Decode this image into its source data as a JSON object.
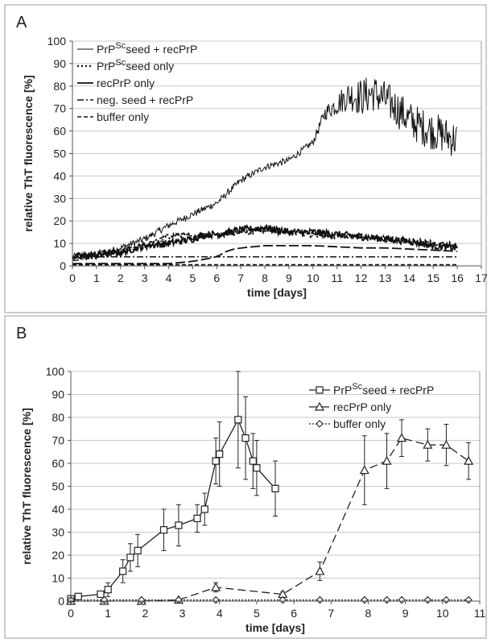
{
  "chart_data": [
    {
      "panel": "A",
      "type": "line",
      "xlabel": "time [days]",
      "ylabel": "relative ThT fluorescence [%]",
      "xlim": [
        0,
        17
      ],
      "ylim": [
        0,
        100
      ],
      "xticks": [
        0,
        1,
        2,
        3,
        4,
        5,
        6,
        7,
        8,
        9,
        10,
        11,
        12,
        13,
        14,
        15,
        16,
        17
      ],
      "yticks": [
        0,
        10,
        20,
        30,
        40,
        50,
        60,
        70,
        80,
        90,
        100
      ],
      "legend_position": "top-left",
      "legend": [
        {
          "sup_prefix": "PrP",
          "sup": "Sc",
          "text": "seed + recPrP",
          "style": "solid-thin"
        },
        {
          "sup_prefix": "PrP",
          "sup": "Sc",
          "text": "seed only",
          "style": "dotted"
        },
        {
          "sup_prefix": "",
          "sup": "",
          "text": "recPrP only",
          "style": "solid-thick"
        },
        {
          "sup_prefix": "",
          "sup": "",
          "text": "neg. seed + recPrP",
          "style": "dash-dot"
        },
        {
          "sup_prefix": "",
          "sup": "",
          "text": "buffer only",
          "style": "dashed"
        }
      ],
      "series": [
        {
          "key": "s1",
          "style": "solid-thin",
          "noise": 1.5,
          "noise_growth": 7,
          "x": [
            0,
            1,
            2,
            3,
            4,
            5,
            6,
            7,
            8,
            9,
            10,
            10.5,
            11,
            11.5,
            12,
            12.5,
            13,
            13.5,
            14,
            14.5,
            15,
            15.5,
            16
          ],
          "y": [
            4,
            5,
            8,
            12,
            18,
            23,
            28,
            38,
            44,
            47,
            55,
            68,
            72,
            76,
            75,
            77,
            74,
            70,
            65,
            62,
            60,
            58,
            56
          ]
        },
        {
          "key": "s2",
          "style": "dotted",
          "noise": 1.2,
          "noise_growth": 0,
          "x": [
            0,
            1,
            2,
            3,
            3.5,
            4,
            4.5,
            5,
            5.5,
            6,
            7,
            8,
            9,
            10,
            11,
            12,
            13,
            14,
            15,
            16
          ],
          "y": [
            3,
            4,
            6,
            9,
            11,
            13,
            14,
            13,
            13,
            14,
            15,
            16,
            15,
            14,
            13,
            13,
            12,
            11,
            10,
            9
          ]
        },
        {
          "key": "s3",
          "style": "solid-thick",
          "noise": 1.6,
          "noise_growth": 0,
          "x": [
            0,
            1,
            2,
            3,
            4,
            5,
            5.5,
            6,
            7,
            8,
            9,
            10,
            11,
            12,
            13,
            14,
            15,
            16
          ],
          "y": [
            4,
            5,
            6,
            9,
            10,
            12,
            14,
            14,
            16,
            17,
            15,
            15,
            14,
            13,
            12,
            11,
            9,
            8
          ]
        },
        {
          "key": "s4",
          "style": "dash-dot",
          "noise": 0,
          "noise_growth": 0,
          "x": [
            0,
            16
          ],
          "y": [
            4,
            4
          ]
        },
        {
          "key": "s5",
          "style": "long-dash",
          "noise": 0,
          "noise_growth": 0,
          "x": [
            0,
            4,
            5,
            5.5,
            6,
            6.5,
            7,
            8,
            9,
            10,
            11,
            12,
            13,
            14,
            15,
            16
          ],
          "y": [
            1,
            1,
            2,
            3,
            4,
            7,
            8,
            9,
            9,
            9,
            8.5,
            8,
            8,
            7.5,
            7,
            6.5
          ]
        },
        {
          "key": "s6",
          "style": "dashed",
          "noise": 0,
          "noise_growth": 0,
          "x": [
            0,
            16
          ],
          "y": [
            0.5,
            0.5
          ]
        }
      ]
    },
    {
      "panel": "B",
      "type": "line",
      "xlabel": "time [days]",
      "ylabel": "relative ThT fluorescence [%]",
      "xlim": [
        0,
        11
      ],
      "ylim": [
        0,
        100
      ],
      "xticks": [
        0,
        1,
        2,
        3,
        4,
        5,
        6,
        7,
        8,
        9,
        10,
        11
      ],
      "yticks": [
        0,
        10,
        20,
        30,
        40,
        50,
        60,
        70,
        80,
        90,
        100
      ],
      "legend_position": "top-right",
      "legend": [
        {
          "sup_prefix": "PrP",
          "sup": "Sc",
          "text": "seed + recPrP",
          "marker": "square",
          "style": "solid"
        },
        {
          "sup_prefix": "",
          "sup": "",
          "text": "recPrP only",
          "marker": "triangle",
          "style": "dashed"
        },
        {
          "sup_prefix": "",
          "sup": "",
          "text": "buffer only",
          "marker": "diamond",
          "style": "dotted"
        }
      ],
      "series": [
        {
          "key": "b1",
          "marker": "square",
          "style": "solid",
          "x": [
            0,
            0.2,
            0.8,
            1.0,
            1.4,
            1.6,
            1.8,
            2.5,
            2.9,
            3.4,
            3.6,
            3.9,
            4.0,
            4.5,
            4.7,
            4.9,
            5.0,
            5.5
          ],
          "y": [
            1,
            2,
            3,
            5,
            13,
            19,
            22,
            31,
            33,
            36,
            40,
            61,
            64,
            79,
            71,
            61,
            58,
            49
          ],
          "err": [
            1,
            1,
            1,
            3,
            5,
            6,
            7,
            9,
            9,
            6,
            7,
            10,
            14,
            21,
            18,
            12,
            12,
            12
          ]
        },
        {
          "key": "b2",
          "marker": "triangle",
          "style": "dashed",
          "x": [
            0,
            0.9,
            1.9,
            2.9,
            3.9,
            5.7,
            6.7,
            7.9,
            8.5,
            8.9,
            9.6,
            10.1,
            10.7
          ],
          "y": [
            0,
            0,
            0,
            0.5,
            6,
            3,
            13,
            57,
            61,
            71,
            68,
            68,
            61
          ],
          "err": [
            0,
            0,
            0,
            0,
            2,
            1,
            4,
            15,
            12,
            8,
            7,
            9,
            8
          ]
        },
        {
          "key": "b3",
          "marker": "diamond",
          "style": "dotted",
          "x": [
            0,
            0.9,
            1.9,
            2.9,
            3.9,
            5.7,
            6.7,
            7.9,
            8.5,
            8.9,
            9.6,
            10.1,
            10.7
          ],
          "y": [
            0.5,
            0.5,
            0.5,
            0.5,
            0.5,
            0.5,
            0.5,
            0.5,
            0.5,
            0.5,
            0.5,
            0.5,
            0.5
          ],
          "err": [
            0,
            0,
            0,
            0,
            0,
            0,
            0,
            0,
            0,
            0,
            0,
            0,
            0
          ]
        }
      ]
    }
  ]
}
